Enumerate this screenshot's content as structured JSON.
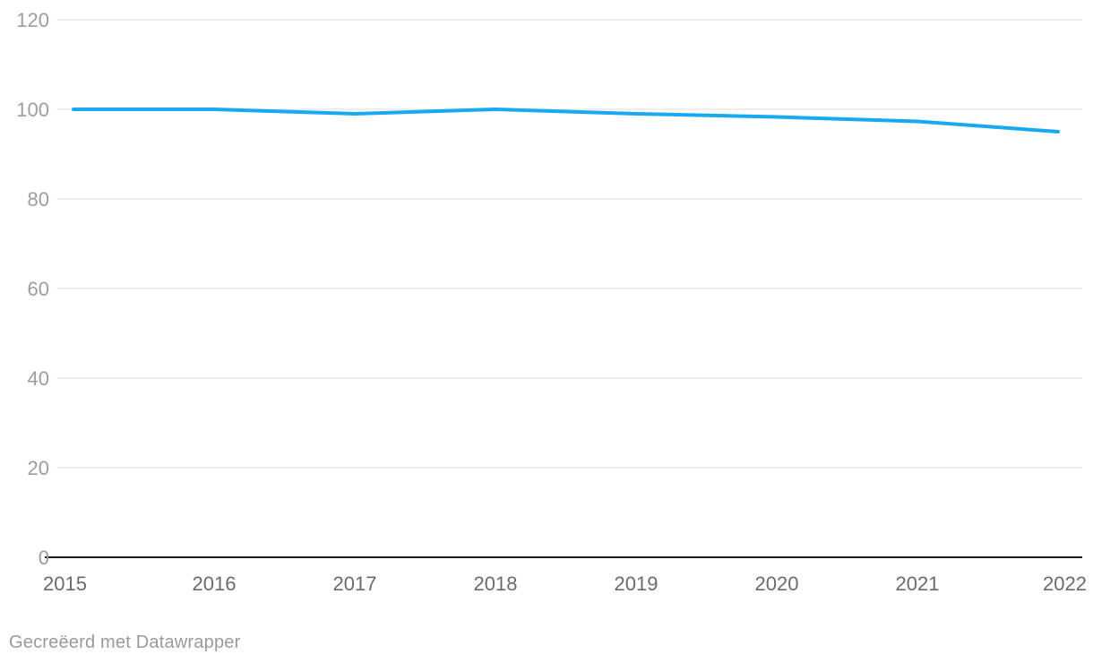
{
  "chart_data": {
    "type": "line",
    "x": [
      "2015",
      "2016",
      "2017",
      "2018",
      "2019",
      "2020",
      "2021",
      "2022"
    ],
    "values": [
      100,
      100,
      99,
      100,
      99,
      98.3,
      97.3,
      95
    ],
    "title": "",
    "xlabel": "",
    "ylabel": "",
    "ylim": [
      0,
      120
    ],
    "yticks": [
      0,
      20,
      40,
      60,
      80,
      100,
      120
    ],
    "grid": true,
    "legend": false,
    "line_color": "#18a9f2"
  },
  "colors": {
    "background": "#ffffff",
    "line": "#18a9f2",
    "grid": "#dddddd",
    "axis": "#1a1a1a",
    "y_tick_label": "#9d9d9d",
    "x_tick_label": "#6b6b6b",
    "footer_text": "#9a9a9a"
  },
  "footer": {
    "credit": "Gecreëerd met Datawrapper"
  }
}
